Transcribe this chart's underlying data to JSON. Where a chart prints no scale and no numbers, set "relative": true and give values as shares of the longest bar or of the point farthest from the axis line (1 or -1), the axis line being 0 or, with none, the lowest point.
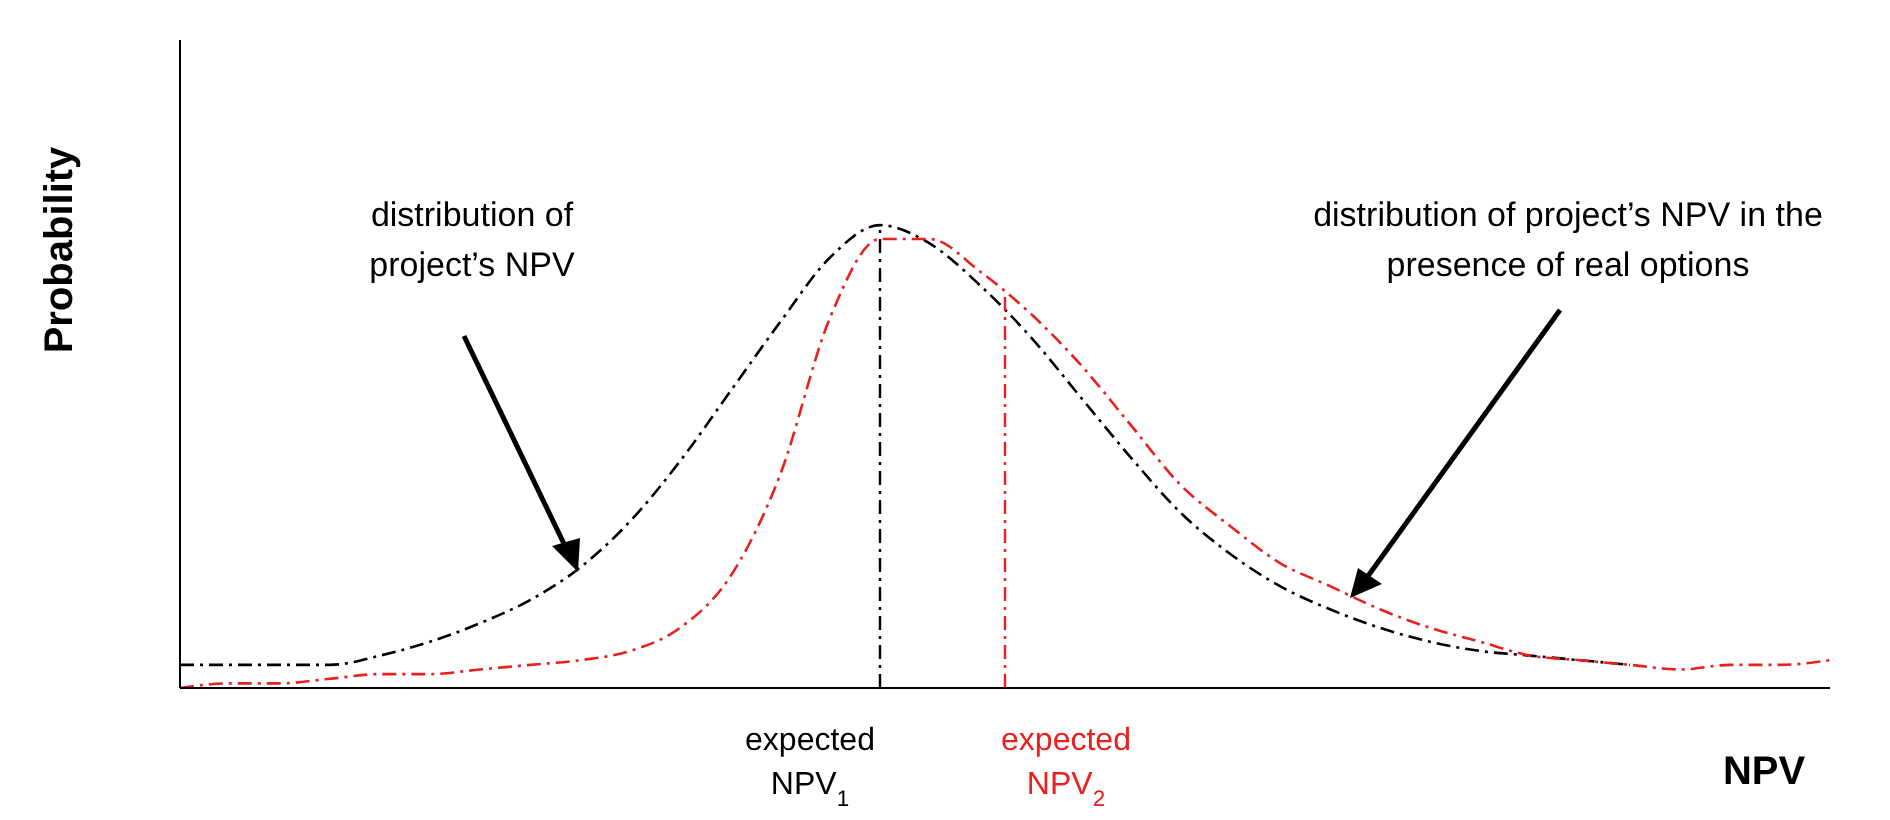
{
  "chart_data": {
    "type": "line",
    "relative": true,
    "ylabel": "Probability",
    "xlabel": "NPV",
    "line_style": "dashed",
    "marker": "none",
    "legend": false,
    "grid": false,
    "categories": [
      null,
      null,
      null,
      null,
      null,
      null,
      null,
      null,
      null,
      null,
      null,
      null,
      null,
      null,
      null,
      null,
      null,
      null,
      null,
      null,
      null,
      null,
      null,
      null,
      null,
      null,
      null,
      null,
      null,
      null,
      null,
      null,
      null,
      null
    ],
    "series": [
      {
        "color": "#000000",
        "values": [
          0.05,
          0.05,
          0.05,
          0.05,
          0.07,
          0.1,
          0.14,
          0.19,
          0.26,
          0.36,
          0.49,
          0.64,
          0.79,
          0.93,
          1.0,
          0.96,
          0.87,
          0.76,
          0.63,
          0.5,
          0.38,
          0.29,
          0.22,
          0.17,
          0.13,
          0.1,
          0.08,
          0.07,
          0.06,
          0.05,
          null,
          null,
          null,
          null
        ]
      },
      {
        "color": "#e8201e",
        "values": [
          0.0,
          0.01,
          0.01,
          0.02,
          0.03,
          0.03,
          0.04,
          0.05,
          0.06,
          0.08,
          0.13,
          0.24,
          0.46,
          0.8,
          0.97,
          0.97,
          0.9,
          0.81,
          0.7,
          0.57,
          0.44,
          0.35,
          0.27,
          0.22,
          0.17,
          0.13,
          0.1,
          0.07,
          0.06,
          0.05,
          0.04,
          0.05,
          0.05,
          0.06
        ]
      }
    ],
    "annotations": [
      "distribution of project’s NPV",
      "distribution of project’s NPV in the presence of real options",
      "expected NPV$_{1}$",
      "expected NPV$_{2}$"
    ]
  }
}
